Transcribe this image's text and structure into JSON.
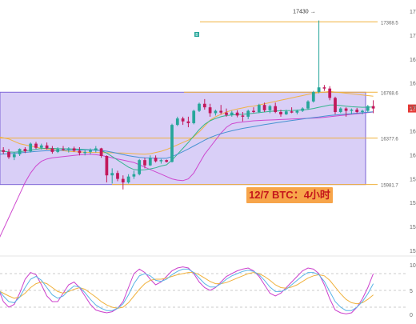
{
  "chart_data": [
    {
      "type": "candlestick",
      "title": "",
      "caption": "12/7 BTC：4小时",
      "series": [
        {
          "name": "",
          "kind": "candles",
          "values": [
            [
              16260,
              16290,
              16230,
              16275
            ],
            [
              16275,
              16300,
              16240,
              16260
            ],
            [
              16260,
              16285,
              16200,
              16215
            ],
            [
              16215,
              16260,
              16190,
              16240
            ],
            [
              16240,
              16290,
              16225,
              16285
            ],
            [
              16285,
              16300,
              16250,
              16265
            ],
            [
              16265,
              16340,
              16255,
              16330
            ],
            [
              16330,
              16345,
              16285,
              16295
            ],
            [
              16295,
              16330,
              16280,
              16315
            ],
            [
              16315,
              16340,
              16280,
              16290
            ],
            [
              16290,
              16310,
              16245,
              16260
            ],
            [
              16260,
              16300,
              16250,
              16285
            ],
            [
              16285,
              16310,
              16270,
              16280
            ],
            [
              16280,
              16300,
              16255,
              16290
            ],
            [
              16290,
              16305,
              16260,
              16270
            ],
            [
              16270,
              16300,
              16230,
              16250
            ],
            [
              16250,
              16275,
              16230,
              16260
            ],
            [
              16260,
              16290,
              16240,
              16275
            ],
            [
              16275,
              16310,
              16255,
              16290
            ],
            [
              16290,
              16295,
              16210,
              16225
            ],
            [
              16225,
              16230,
              16000,
              16060
            ],
            [
              16060,
              16120,
              15990,
              16080
            ],
            [
              16080,
              16100,
              16010,
              16030
            ],
            [
              16030,
              16060,
              15940,
              16000
            ],
            [
              16000,
              16070,
              15990,
              16050
            ],
            [
              16050,
              16100,
              16030,
              16070
            ],
            [
              16070,
              16200,
              16060,
              16190
            ],
            [
              16190,
              16210,
              16120,
              16145
            ],
            [
              16145,
              16230,
              16140,
              16210
            ],
            [
              16210,
              16230,
              16170,
              16180
            ],
            [
              16180,
              16200,
              16160,
              16190
            ],
            [
              16190,
              16195,
              16170,
              16175
            ],
            [
              16175,
              16500,
              16170,
              16490
            ],
            [
              16490,
              16560,
              16480,
              16545
            ],
            [
              16545,
              16560,
              16490,
              16520
            ],
            [
              16520,
              16560,
              16470,
              16505
            ],
            [
              16505,
              16620,
              16495,
              16610
            ],
            [
              16610,
              16680,
              16600,
              16670
            ],
            [
              16670,
              16710,
              16620,
              16640
            ],
            [
              16640,
              16670,
              16560,
              16590
            ],
            [
              16590,
              16620,
              16570,
              16610
            ],
            [
              16610,
              16660,
              16580,
              16595
            ],
            [
              16595,
              16630,
              16560,
              16575
            ],
            [
              16575,
              16610,
              16560,
              16595
            ],
            [
              16595,
              16615,
              16555,
              16570
            ],
            [
              16570,
              16600,
              16520,
              16560
            ],
            [
              16560,
              16620,
              16540,
              16610
            ],
            [
              16610,
              16640,
              16590,
              16600
            ],
            [
              16600,
              16670,
              16590,
              16660
            ],
            [
              16660,
              16680,
              16600,
              16615
            ],
            [
              16615,
              16660,
              16590,
              16650
            ],
            [
              16650,
              16680,
              16590,
              16600
            ],
            [
              16600,
              16620,
              16560,
              16580
            ],
            [
              16580,
              16620,
              16575,
              16605
            ],
            [
              16605,
              16640,
              16590,
              16595
            ],
            [
              16595,
              16620,
              16580,
              16610
            ],
            [
              16610,
              16640,
              16600,
              16630
            ],
            [
              16630,
              16700,
              16620,
              16690
            ],
            [
              16690,
              16780,
              16680,
              16770
            ],
            [
              16770,
              17380,
              16760,
              16810
            ],
            [
              16810,
              16830,
              16780,
              16800
            ],
            [
              16800,
              16820,
              16700,
              16720
            ],
            [
              16720,
              16730,
              16580,
              16600
            ],
            [
              16600,
              16640,
              16590,
              16630
            ],
            [
              16630,
              16640,
              16560,
              16610
            ],
            [
              16610,
              16630,
              16580,
              16620
            ],
            [
              16620,
              16635,
              16590,
              16600
            ],
            [
              16600,
              16620,
              16580,
              16610
            ],
            [
              16610,
              16660,
              16600,
              16650
            ],
            [
              16650,
              16700,
              16590,
              16630
            ]
          ]
        },
        {
          "name": "",
          "kind": "line",
          "color": "#f0b13c",
          "values": [
            16390,
            16380,
            16370,
            16350,
            16330,
            16320,
            16310,
            16300,
            16290,
            16285,
            16280,
            16275,
            16270,
            16265,
            16262,
            16260,
            16258,
            16256,
            16255,
            16254,
            16253,
            16252,
            16251,
            16250,
            16248,
            16245,
            16242,
            16240,
            16245,
            16255,
            16265,
            16280,
            16300,
            16320,
            16340,
            16360,
            16390,
            16430,
            16480,
            16530,
            16560,
            16580,
            16600,
            16615,
            16625,
            16635,
            16645,
            16650,
            16660,
            16670,
            16680,
            16690,
            16700,
            16710,
            16720,
            16730,
            16740,
            16750,
            16760,
            16765,
            16770,
            16775,
            16770,
            16765,
            16760,
            16755,
            16750,
            16745,
            16740,
            16735
          ]
        },
        {
          "name": "",
          "kind": "line",
          "color": "#cc40cc",
          "values": [
            15500,
            15600,
            15700,
            15800,
            15900,
            16000,
            16080,
            16140,
            16180,
            16200,
            16210,
            16215,
            16220,
            16225,
            16230,
            16235,
            16238,
            16240,
            16236,
            16230,
            16220,
            16210,
            16200,
            16190,
            16180,
            16170,
            16150,
            16130,
            16110,
            16090,
            16070,
            16050,
            16030,
            16020,
            16015,
            16030,
            16080,
            16160,
            16240,
            16300,
            16360,
            16420,
            16470,
            16500,
            16510,
            16515,
            16520,
            16525,
            16528,
            16530,
            16532,
            16534,
            16536,
            16538,
            16540,
            16542,
            16544,
            16546,
            16548,
            16550,
            16555,
            16560,
            16565,
            16570,
            16575,
            16580,
            16585,
            16590,
            16595,
            16600
          ]
        },
        {
          "name": "",
          "kind": "line",
          "color": "#2bb388",
          "values": [
            16270,
            16265,
            16260,
            16258,
            16262,
            16268,
            16275,
            16282,
            16288,
            16292,
            16290,
            16288,
            16287,
            16286,
            16285,
            16283,
            16280,
            16278,
            16278,
            16270,
            16250,
            16220,
            16190,
            16160,
            16130,
            16110,
            16105,
            16108,
            16115,
            16125,
            16140,
            16150,
            16190,
            16240,
            16290,
            16340,
            16395,
            16450,
            16495,
            16525,
            16545,
            16560,
            16570,
            16575,
            16578,
            16580,
            16585,
            16590,
            16595,
            16600,
            16605,
            16608,
            16610,
            16612,
            16613,
            16615,
            16618,
            16622,
            16630,
            16640,
            16650,
            16660,
            16660,
            16655,
            16650,
            16645,
            16642,
            16640,
            16641,
            16642
          ]
        },
        {
          "name": "",
          "kind": "line",
          "color": "#3f8fd0",
          "values": [
            16240,
            16242,
            16245,
            16248,
            16252,
            16256,
            16260,
            16264,
            16268,
            16270,
            16272,
            16273,
            16274,
            16275,
            16276,
            16276,
            16276,
            16276,
            16275,
            16272,
            16266,
            16258,
            16248,
            16238,
            16228,
            16220,
            16214,
            16210,
            16208,
            16206,
            16205,
            16205,
            16220,
            16240,
            16262,
            16285,
            16310,
            16335,
            16360,
            16382,
            16400,
            16415,
            16428,
            16440,
            16450,
            16460,
            16468,
            16476,
            16484,
            16492,
            16500,
            16507,
            16514,
            16521,
            16528,
            16534,
            16540,
            16546,
            16552,
            16558,
            16564,
            16570,
            16574,
            16578,
            16582,
            16586,
            16590,
            16594,
            16598,
            16602
          ]
        }
      ],
      "levels": [
        {
          "value": 17368.5,
          "label": "17368.5",
          "color": "#f0b13c"
        },
        {
          "value": 16768.6,
          "label": "16768.6",
          "color": "#f0b13c"
        },
        {
          "value": 16377.6,
          "label": "16377.6",
          "color": "#f0b13c"
        },
        {
          "value": 15981.7,
          "label": "15981.7",
          "color": "#f0b13c"
        }
      ],
      "range_box": {
        "from": 16768.6,
        "to": 15981.7,
        "color": "#b9a7f0"
      },
      "peak": {
        "value": 17430,
        "label": "17430"
      },
      "right_ticks": [
        "17",
        "17",
        "16",
        "16",
        "16",
        "16",
        "16",
        "15",
        "15",
        "15",
        "15"
      ],
      "current_price_tag": "17",
      "signal_marker": "B",
      "ylim": [
        15400,
        17500
      ]
    },
    {
      "type": "line",
      "title": "",
      "series": [
        {
          "name": "",
          "color": "#cc40cc",
          "values": [
            55,
            30,
            20,
            25,
            45,
            70,
            82,
            78,
            60,
            40,
            30,
            30,
            45,
            60,
            65,
            55,
            40,
            25,
            15,
            12,
            10,
            12,
            18,
            30,
            55,
            80,
            88,
            82,
            70,
            60,
            65,
            75,
            85,
            90,
            92,
            90,
            80,
            65,
            55,
            50,
            55,
            65,
            75,
            80,
            85,
            88,
            90,
            85,
            75,
            60,
            45,
            40,
            45,
            55,
            65,
            75,
            85,
            90,
            88,
            80,
            60,
            35,
            15,
            10,
            8,
            10,
            20,
            35,
            55,
            80
          ]
        },
        {
          "name": "",
          "color": "#f0b13c",
          "values": [
            50,
            45,
            40,
            36,
            38,
            45,
            55,
            62,
            65,
            62,
            55,
            48,
            45,
            48,
            52,
            55,
            52,
            45,
            38,
            30,
            24,
            20,
            18,
            20,
            28,
            40,
            52,
            62,
            68,
            70,
            70,
            72,
            75,
            78,
            80,
            82,
            82,
            78,
            72,
            66,
            62,
            62,
            64,
            68,
            72,
            76,
            80,
            82,
            80,
            75,
            68,
            60,
            55,
            54,
            56,
            60,
            66,
            72,
            76,
            78,
            76,
            68,
            56,
            44,
            34,
            28,
            26,
            28,
            34,
            42
          ]
        },
        {
          "name": "",
          "color": "#5ab4e6",
          "values": [
            52,
            40,
            30,
            28,
            38,
            55,
            70,
            75,
            68,
            55,
            42,
            36,
            40,
            50,
            58,
            56,
            46,
            34,
            24,
            18,
            14,
            14,
            18,
            26,
            42,
            62,
            76,
            80,
            76,
            68,
            66,
            70,
            78,
            84,
            88,
            88,
            82,
            72,
            62,
            56,
            56,
            62,
            70,
            76,
            80,
            84,
            86,
            84,
            78,
            68,
            56,
            48,
            48,
            52,
            60,
            68,
            76,
            82,
            82,
            78,
            66,
            48,
            30,
            20,
            14,
            14,
            20,
            30,
            44,
            62
          ]
        }
      ],
      "ylim": [
        0,
        100
      ],
      "right_ticks": [
        "10",
        "5",
        "0"
      ]
    }
  ]
}
